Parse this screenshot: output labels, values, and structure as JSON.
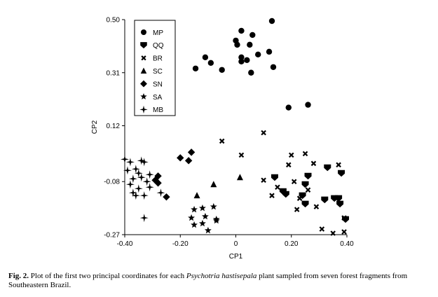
{
  "chart_data": {
    "type": "scatter",
    "xlabel": "CP1",
    "ylabel": "CP2",
    "xlim": [
      -0.4,
      0.4
    ],
    "ylim": [
      -0.27,
      0.5
    ],
    "xticks": [
      "-0.40",
      "-0.20",
      "0",
      "0.20",
      "0.40"
    ],
    "xtick_values": [
      -0.4,
      -0.2,
      0,
      0.2,
      0.4
    ],
    "yticks": [
      "0.50",
      "0.31",
      "0.12",
      "-0.08",
      "-0.27"
    ],
    "ytick_values": [
      0.5,
      0.31,
      0.12,
      -0.08,
      -0.27
    ],
    "grid": false,
    "legend_position": "top-left",
    "series": [
      {
        "name": "MP",
        "marker": "circle",
        "points": [
          [
            0.13,
            0.495
          ],
          [
            0.02,
            0.46
          ],
          [
            0.06,
            0.445
          ],
          [
            0.0,
            0.425
          ],
          [
            0.005,
            0.41
          ],
          [
            0.05,
            0.41
          ],
          [
            0.12,
            0.385
          ],
          [
            0.08,
            0.375
          ],
          [
            0.02,
            0.365
          ],
          [
            0.04,
            0.355
          ],
          [
            0.02,
            0.35
          ],
          [
            -0.11,
            0.365
          ],
          [
            -0.09,
            0.345
          ],
          [
            -0.145,
            0.325
          ],
          [
            -0.05,
            0.32
          ],
          [
            0.135,
            0.33
          ],
          [
            0.055,
            0.31
          ],
          [
            0.19,
            0.185
          ],
          [
            0.26,
            0.195
          ]
        ]
      },
      {
        "name": "QQ",
        "marker": "shield",
        "points": [
          [
            0.14,
            -0.065
          ],
          [
            0.26,
            -0.06
          ],
          [
            0.33,
            -0.03
          ],
          [
            0.38,
            -0.05
          ],
          [
            0.25,
            -0.09
          ],
          [
            0.17,
            -0.115
          ],
          [
            0.18,
            -0.125
          ],
          [
            0.24,
            -0.13
          ],
          [
            0.25,
            -0.16
          ],
          [
            0.32,
            -0.145
          ],
          [
            0.355,
            -0.14
          ],
          [
            0.37,
            -0.14
          ],
          [
            0.375,
            -0.16
          ],
          [
            0.395,
            -0.215
          ]
        ]
      },
      {
        "name": "BR",
        "marker": "x",
        "points": [
          [
            0.1,
            0.095
          ],
          [
            0.25,
            0.02
          ],
          [
            0.2,
            0.015
          ],
          [
            0.19,
            -0.02
          ],
          [
            0.28,
            -0.015
          ],
          [
            0.37,
            -0.02
          ],
          [
            0.1,
            -0.075
          ],
          [
            0.21,
            -0.08
          ],
          [
            0.15,
            -0.1
          ],
          [
            0.26,
            -0.11
          ],
          [
            0.13,
            -0.13
          ],
          [
            0.23,
            -0.14
          ],
          [
            0.22,
            -0.18
          ],
          [
            0.29,
            -0.17
          ],
          [
            0.31,
            -0.25
          ],
          [
            0.39,
            -0.21
          ],
          [
            0.35,
            -0.265
          ],
          [
            0.39,
            -0.26
          ],
          [
            -0.05,
            0.065
          ],
          [
            0.02,
            0.015
          ]
        ]
      },
      {
        "name": "SC",
        "marker": "triangle",
        "points": [
          [
            0.015,
            -0.065
          ],
          [
            -0.08,
            -0.09
          ],
          [
            -0.14,
            -0.13
          ]
        ]
      },
      {
        "name": "SN",
        "marker": "diamond",
        "points": [
          [
            -0.16,
            0.025
          ],
          [
            -0.2,
            0.005
          ],
          [
            -0.17,
            -0.005
          ],
          [
            -0.28,
            -0.06
          ],
          [
            -0.29,
            -0.075
          ],
          [
            -0.28,
            -0.085
          ],
          [
            -0.25,
            -0.135
          ]
        ]
      },
      {
        "name": "SA",
        "marker": "star",
        "points": [
          [
            -0.15,
            -0.18
          ],
          [
            -0.12,
            -0.175
          ],
          [
            -0.08,
            -0.17
          ],
          [
            -0.16,
            -0.21
          ],
          [
            -0.11,
            -0.205
          ],
          [
            -0.07,
            -0.22
          ],
          [
            -0.15,
            -0.235
          ],
          [
            -0.12,
            -0.23
          ],
          [
            -0.07,
            -0.215
          ],
          [
            -0.1,
            -0.255
          ]
        ]
      },
      {
        "name": "MB",
        "marker": "plus4",
        "points": [
          [
            -0.4,
            0.0
          ],
          [
            -0.38,
            -0.01
          ],
          [
            -0.34,
            -0.005
          ],
          [
            -0.33,
            -0.01
          ],
          [
            -0.36,
            -0.035
          ],
          [
            -0.39,
            -0.04
          ],
          [
            -0.35,
            -0.05
          ],
          [
            -0.31,
            -0.055
          ],
          [
            -0.37,
            -0.07
          ],
          [
            -0.34,
            -0.065
          ],
          [
            -0.32,
            -0.08
          ],
          [
            -0.38,
            -0.09
          ],
          [
            -0.35,
            -0.105
          ],
          [
            -0.31,
            -0.1
          ],
          [
            -0.37,
            -0.12
          ],
          [
            -0.36,
            -0.13
          ],
          [
            -0.33,
            -0.13
          ],
          [
            -0.27,
            -0.12
          ],
          [
            -0.33,
            -0.21
          ]
        ]
      }
    ]
  },
  "caption": {
    "label": "Fig. 2.",
    "text_before": " Plot of the first two principal coordinates for each ",
    "species": "Psychotria hastisepala",
    "text_after": " plant sampled from seven forest fragments from Southeastern Brazil."
  }
}
